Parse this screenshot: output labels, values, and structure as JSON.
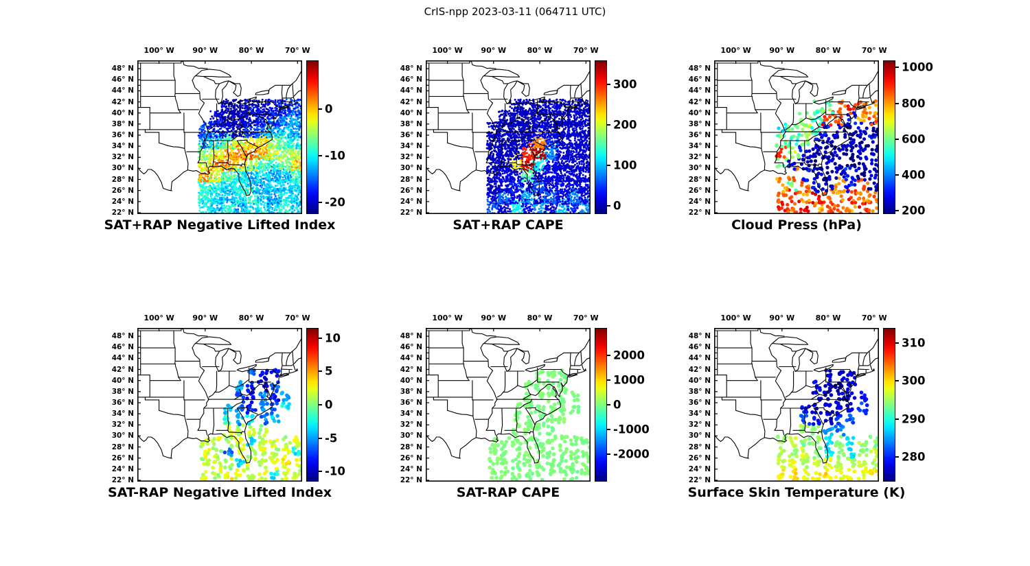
{
  "figure": {
    "title": "CrIS-npp 2023-03-11 (064711 UTC)",
    "background": "#ffffff",
    "colormap": "jet"
  },
  "axes": {
    "lon_labels": [
      "100° W",
      "90° W",
      "80° W",
      "70° W"
    ],
    "lons": [
      -100,
      -90,
      -80,
      -70
    ],
    "lat_labels": [
      "48° N",
      "46° N",
      "44° N",
      "42° N",
      "40° N",
      "38° N",
      "36° N",
      "34° N",
      "32° N",
      "30° N",
      "28° N",
      "26° N",
      "24° N",
      "22° N"
    ],
    "lats": [
      48,
      46,
      44,
      42,
      40,
      38,
      36,
      34,
      32,
      30,
      28,
      26,
      24,
      22
    ],
    "lon_range": [
      -104.7,
      -69.0
    ],
    "lat_range": [
      21.75,
      49.5
    ],
    "grid": "off"
  },
  "chart_data": [
    {
      "type": "scatter",
      "title": "SAT+RAP Negative Lifted Index",
      "colorbar": {
        "vmin": -22.5,
        "vmax": 10.5,
        "ticks": [
          0,
          -10,
          -20
        ],
        "colormap": "jet",
        "position": "right"
      },
      "render": {
        "dot_radius": 1.5,
        "dots_per_sample": 60,
        "spread_deg": 1.45,
        "value_jitter": 2.5
      },
      "grid": {
        "lats": [
          23,
          25,
          27,
          29,
          31,
          33,
          35,
          37,
          39,
          41
        ],
        "lons": [
          -90,
          -87.5,
          -85,
          -82.5,
          -80,
          -77.5,
          -75,
          -72.5,
          -70,
          -67.5
        ],
        "values": [
          [
            -10,
            -12,
            -9,
            -13,
            -11,
            -10,
            -12,
            -9,
            -11,
            -12
          ],
          [
            -9,
            -11,
            -13,
            -10,
            -8,
            -12,
            -14,
            -10,
            -12,
            -11
          ],
          [
            -8,
            -10,
            -11,
            -9,
            -12,
            -13,
            -11,
            -12,
            -10,
            -9
          ],
          [
            1,
            -3,
            -7,
            -10,
            -12,
            -11,
            -13,
            -12,
            -8,
            -2
          ],
          [
            -3,
            1,
            2,
            -1,
            -5,
            -8,
            -9,
            -6,
            0,
            1
          ],
          [
            -6,
            -3,
            0,
            2,
            2,
            1,
            -3,
            -5,
            -4,
            -2
          ],
          [
            -14,
            -12,
            -8,
            -4,
            -1,
            -2,
            -6,
            -9,
            -10,
            -8
          ],
          [
            -16,
            -18,
            -19,
            -20,
            -17,
            -15,
            -13,
            -12,
            -14,
            -12
          ],
          [
            null,
            -19,
            -21,
            -20,
            -19,
            -18,
            -16,
            -15,
            -13,
            -14
          ],
          [
            null,
            null,
            -20,
            -21,
            -19,
            -20,
            -18,
            -17,
            -16,
            -15
          ]
        ]
      }
    },
    {
      "type": "scatter",
      "title": "SAT+RAP CAPE",
      "colorbar": {
        "vmin": -20,
        "vmax": 360,
        "ticks": [
          300,
          200,
          100,
          0
        ],
        "colormap": "jet",
        "position": "right"
      },
      "render": {
        "dot_radius": 1.5,
        "dots_per_sample": 60,
        "spread_deg": 1.45,
        "value_jitter": 12
      },
      "grid": {
        "lats": [
          23,
          25,
          27,
          29,
          31,
          33,
          35,
          37,
          39,
          41
        ],
        "lons": [
          -90,
          -87.5,
          -85,
          -82.5,
          -80,
          -77.5,
          -75,
          -72.5,
          -70,
          -67.5
        ],
        "values": [
          [
            60,
            10,
            120,
            30,
            90,
            15,
            100,
            40,
            80,
            20
          ],
          [
            10,
            70,
            20,
            90,
            10,
            60,
            15,
            80,
            10,
            50
          ],
          [
            5,
            10,
            40,
            10,
            60,
            10,
            30,
            10,
            20,
            10
          ],
          [
            10,
            20,
            10,
            150,
            10,
            20,
            10,
            10,
            10,
            10
          ],
          [
            5,
            10,
            220,
            330,
            120,
            20,
            10,
            10,
            10,
            10
          ],
          [
            5,
            10,
            10,
            300,
            340,
            80,
            10,
            10,
            10,
            10
          ],
          [
            5,
            5,
            10,
            20,
            260,
            40,
            10,
            10,
            10,
            10
          ],
          [
            5,
            5,
            5,
            10,
            20,
            10,
            5,
            10,
            5,
            10
          ],
          [
            null,
            5,
            5,
            5,
            10,
            5,
            10,
            5,
            10,
            5
          ],
          [
            null,
            null,
            5,
            5,
            5,
            10,
            5,
            10,
            5,
            10
          ]
        ]
      }
    },
    {
      "type": "scatter",
      "title": "Cloud Press (hPa)",
      "colorbar": {
        "vmin": 180,
        "vmax": 1040,
        "ticks": [
          1000,
          800,
          600,
          400,
          200
        ],
        "colormap": "jet",
        "position": "right"
      },
      "render": {
        "dot_radius": 2.6,
        "dots_per_sample": 8,
        "spread_deg": 1.2,
        "value_jitter": 50
      },
      "grid": {
        "lats": [
          23,
          25,
          27,
          29,
          31,
          33,
          35,
          37,
          39,
          41
        ],
        "lons": [
          -90,
          -87.5,
          -85,
          -82.5,
          -80,
          -77.5,
          -75,
          -72.5,
          -70,
          -67.5
        ],
        "values": [
          [
            900,
            850,
            950,
            800,
            900,
            850,
            800,
            900,
            850,
            800
          ],
          [
            850,
            900,
            800,
            950,
            850,
            800,
            900,
            800,
            850,
            900
          ],
          [
            800,
            600,
            850,
            300,
            250,
            800,
            300,
            850,
            200,
            800
          ],
          [
            null,
            850,
            300,
            250,
            200,
            250,
            300,
            200,
            250,
            200
          ],
          [
            600,
            300,
            250,
            200,
            250,
            200,
            150,
            200,
            250,
            300
          ],
          [
            900,
            650,
            300,
            250,
            200,
            250,
            200,
            250,
            200,
            250
          ],
          [
            600,
            550,
            600,
            300,
            250,
            200,
            250,
            200,
            300,
            250
          ],
          [
            500,
            600,
            650,
            550,
            300,
            250,
            200,
            250,
            200,
            300
          ],
          [
            null,
            null,
            600,
            550,
            900,
            850,
            300,
            800,
            850,
            900
          ],
          [
            null,
            null,
            null,
            550,
            600,
            850,
            900,
            850,
            800,
            850
          ]
        ]
      }
    },
    {
      "type": "scatter",
      "title": "SAT-RAP Negative Lifted Index",
      "colorbar": {
        "vmin": -11.5,
        "vmax": 11.5,
        "ticks": [
          10,
          5,
          0,
          -5,
          -10
        ],
        "colormap": "jet",
        "position": "right"
      },
      "render": {
        "dot_radius": 2.8,
        "dots_per_sample": 7,
        "spread_deg": 0.95,
        "value_jitter": 1.2
      },
      "grid": {
        "lats": [
          23,
          25,
          27,
          29,
          31,
          33,
          35,
          37,
          39,
          41
        ],
        "lons": [
          -90,
          -87.5,
          -85,
          -82.5,
          -80,
          -77.5,
          -75,
          -72.5,
          -70,
          -67.5
        ],
        "values": [
          [
            2,
            1,
            3,
            2,
            1,
            2,
            -3,
            2,
            1,
            2
          ],
          [
            1,
            2,
            1,
            -4,
            2,
            1,
            2,
            3,
            2,
            1
          ],
          [
            2,
            1,
            -6,
            2,
            1,
            2,
            1,
            2,
            -3,
            2
          ],
          [
            1,
            2,
            1,
            2,
            -4,
            1,
            2,
            1,
            2,
            null
          ],
          [
            null,
            null,
            2,
            1,
            2,
            1,
            null,
            null,
            null,
            null
          ],
          [
            null,
            null,
            -2,
            -5,
            -3,
            -6,
            -4,
            null,
            null,
            null
          ],
          [
            null,
            null,
            -4,
            -6,
            -8,
            -5,
            -7,
            -3,
            null,
            null
          ],
          [
            null,
            null,
            null,
            -7,
            -9,
            -6,
            -8,
            -5,
            null,
            null
          ],
          [
            null,
            null,
            null,
            -5,
            -8,
            -10,
            -7,
            null,
            null,
            null
          ],
          [
            null,
            null,
            null,
            null,
            -6,
            -9,
            -8,
            null,
            null,
            null
          ]
        ]
      }
    },
    {
      "type": "scatter",
      "title": "SAT-RAP CAPE",
      "colorbar": {
        "vmin": -3100,
        "vmax": 3100,
        "ticks": [
          2000,
          1000,
          0,
          -1000,
          -2000
        ],
        "colormap": "jet",
        "position": "right"
      },
      "render": {
        "dot_radius": 2.8,
        "dots_per_sample": 7,
        "spread_deg": 0.95,
        "value_jitter": 80
      },
      "grid": {
        "lats": [
          23,
          25,
          27,
          29,
          31,
          33,
          35,
          37,
          39,
          41
        ],
        "lons": [
          -90,
          -87.5,
          -85,
          -82.5,
          -80,
          -77.5,
          -75,
          -72.5,
          -70,
          -67.5
        ],
        "values": [
          [
            0,
            50,
            0,
            -60,
            0,
            40,
            0,
            -50,
            0,
            30
          ],
          [
            40,
            0,
            -50,
            0,
            60,
            0,
            -40,
            0,
            50,
            0
          ],
          [
            0,
            -40,
            0,
            50,
            0,
            -60,
            0,
            40,
            0,
            -50
          ],
          [
            50,
            0,
            40,
            0,
            -50,
            0,
            60,
            0,
            -40,
            null
          ],
          [
            null,
            null,
            0,
            50,
            0,
            -40,
            null,
            null,
            null,
            null
          ],
          [
            null,
            null,
            40,
            0,
            -50,
            0,
            60,
            null,
            null,
            null
          ],
          [
            null,
            null,
            0,
            -40,
            0,
            50,
            0,
            -60,
            null,
            null
          ],
          [
            null,
            null,
            null,
            0,
            40,
            0,
            -50,
            0,
            null,
            null
          ],
          [
            null,
            null,
            null,
            50,
            0,
            -40,
            0,
            null,
            null,
            null
          ],
          [
            null,
            null,
            null,
            null,
            0,
            40,
            -50,
            null,
            null,
            null
          ]
        ]
      }
    },
    {
      "type": "scatter",
      "title": "Surface Skin Temperature (K)",
      "colorbar": {
        "vmin": 273.5,
        "vmax": 314,
        "ticks": [
          310,
          300,
          290,
          280
        ],
        "colormap": "jet",
        "position": "right"
      },
      "render": {
        "dot_radius": 2.8,
        "dots_per_sample": 7,
        "spread_deg": 0.95,
        "value_jitter": 1.5
      },
      "grid": {
        "lats": [
          23,
          25,
          27,
          29,
          31,
          33,
          35,
          37,
          39,
          41
        ],
        "lons": [
          -90,
          -87.5,
          -85,
          -82.5,
          -80,
          -77.5,
          -75,
          -72.5,
          -70,
          -67.5
        ],
        "values": [
          [
            299,
            300,
            298,
            299,
            300,
            298,
            299,
            298,
            300,
            299
          ],
          [
            297,
            298,
            296,
            297,
            298,
            296,
            295,
            297,
            296,
            298
          ],
          [
            296,
            295,
            297,
            294,
            288,
            295,
            287,
            294,
            296,
            295
          ],
          [
            295,
            296,
            294,
            295,
            287,
            294,
            288,
            295,
            294,
            null
          ],
          [
            null,
            null,
            295,
            294,
            285,
            283,
            null,
            null,
            null,
            null
          ],
          [
            null,
            null,
            282,
            279,
            277,
            280,
            282,
            null,
            null,
            null
          ],
          [
            null,
            null,
            279,
            277,
            276,
            278,
            277,
            281,
            null,
            null
          ],
          [
            null,
            null,
            null,
            277,
            276,
            277,
            276,
            279,
            null,
            null
          ],
          [
            null,
            null,
            null,
            278,
            276,
            275,
            277,
            null,
            null,
            null
          ],
          [
            null,
            null,
            null,
            null,
            277,
            276,
            278,
            null,
            null,
            null
          ]
        ]
      }
    }
  ]
}
